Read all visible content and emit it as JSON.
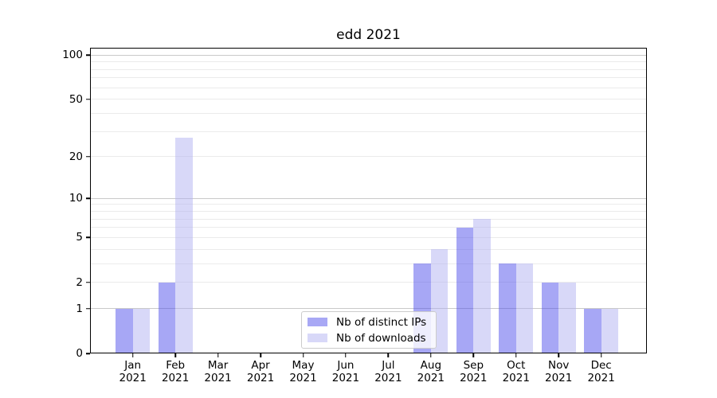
{
  "figure": {
    "title": "edd 2021"
  },
  "chart_data": {
    "type": "bar",
    "title": "edd 2021",
    "categories": [
      "Jan",
      "Feb",
      "Mar",
      "Apr",
      "May",
      "Jun",
      "Jul",
      "Aug",
      "Sep",
      "Oct",
      "Nov",
      "Dec"
    ],
    "year_suffix": "2021",
    "series": [
      {
        "name": "Nb of distinct IPs",
        "color": "#a8a8f5",
        "fill": "rgba(80,80,235,0.5)",
        "values": [
          1,
          2,
          0,
          0,
          0,
          0,
          0,
          3,
          6,
          3,
          2,
          1
        ]
      },
      {
        "name": "Nb of downloads",
        "color": "#d8d8f8",
        "fill": "rgba(178,178,242,0.5)",
        "values": [
          1,
          27,
          0,
          0,
          0,
          0,
          0,
          4,
          7,
          3,
          2,
          1
        ]
      }
    ],
    "xlabel": "",
    "ylabel": "",
    "yscale": "log1p",
    "ylim": [
      0,
      112
    ],
    "yticks": [
      0,
      1,
      2,
      5,
      10,
      20,
      50,
      100
    ],
    "gridlines": {
      "major": [
        1,
        10,
        100
      ],
      "minor": [
        2,
        3,
        4,
        5,
        6,
        7,
        8,
        9,
        20,
        30,
        40,
        50,
        60,
        70,
        80,
        90
      ],
      "major_color": "#c9c9c9",
      "minor_color": "#ebebeb"
    },
    "legend_position": "lower center-left",
    "grid": true
  }
}
